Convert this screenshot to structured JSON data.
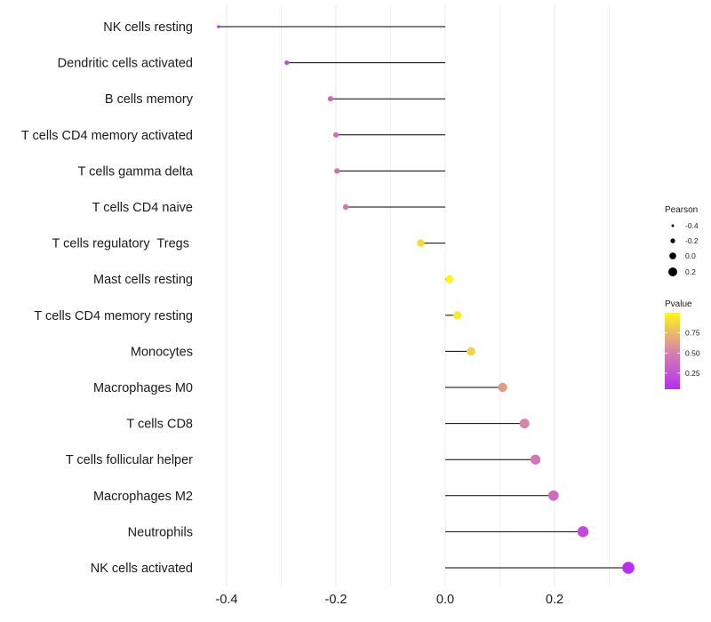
{
  "chart_data": {
    "type": "lollipop",
    "title": "",
    "xlabel": "",
    "ylabel": "",
    "xlim": [
      -0.42,
      0.34
    ],
    "xticks": [
      -0.4,
      -0.2,
      0.0,
      0.2
    ],
    "xtick_labels": [
      "-0.4",
      "-0.2",
      "0.0",
      "0.2"
    ],
    "grid": true,
    "categories": [
      "NK cells resting",
      "Dendritic cells activated",
      "B cells memory",
      "T cells CD4 memory activated",
      "T cells gamma delta",
      "T cells CD4 naive",
      "T cells regulatory  Tregs ",
      "Mast cells resting",
      "T cells CD4 memory resting",
      "Monocytes",
      "Macrophages M0",
      "T cells CD8",
      "T cells follicular helper",
      "Macrophages M2",
      "Neutrophils",
      "NK cells activated"
    ],
    "pearson": [
      -0.415,
      -0.29,
      -0.21,
      -0.2,
      -0.198,
      -0.182,
      -0.045,
      0.008,
      0.022,
      0.047,
      0.105,
      0.145,
      0.165,
      0.198,
      0.252,
      0.335
    ],
    "pvalue": [
      0.05,
      0.18,
      0.36,
      0.4,
      0.4,
      0.45,
      0.88,
      1.0,
      0.95,
      0.85,
      0.62,
      0.52,
      0.45,
      0.38,
      0.2,
      0.06
    ],
    "legend_position": "right",
    "size_legend": {
      "title": "Pearson",
      "values": [
        -0.4,
        -0.2,
        0.0,
        0.2
      ],
      "labels": [
        "-0.4",
        "-0.2",
        "0.0",
        "0.2"
      ]
    },
    "color_legend": {
      "title": "Pvalue",
      "range": [
        0.05,
        1.0
      ],
      "ticks": [
        0.25,
        0.5,
        0.75
      ],
      "tick_labels": [
        "0.25",
        "0.50",
        "0.75"
      ],
      "low_color": "#b52ef2",
      "mid_color": "#d686a8",
      "high_color": "#fff51e"
    },
    "colors": {
      "stem": "#000000",
      "grid": "#ebebeb"
    }
  }
}
